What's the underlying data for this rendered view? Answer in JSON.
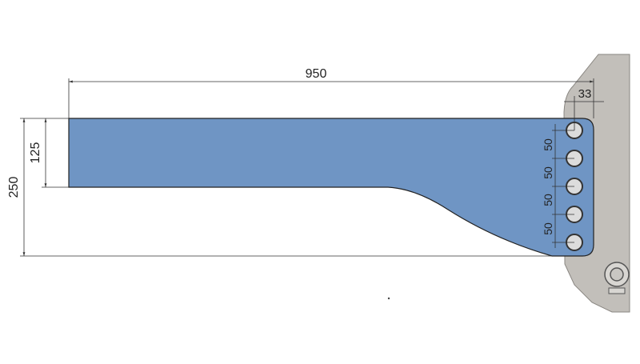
{
  "colors": {
    "part": "#6f95c4",
    "bracket": "#c2bfba",
    "hole": "#dcdcdc",
    "line": "#333333"
  },
  "dimensions": {
    "overall_length": "950",
    "narrow_height": "125",
    "overall_height": "250",
    "hole_offset": "33",
    "hole_spacing": [
      "50",
      "50",
      "50",
      "50"
    ]
  }
}
